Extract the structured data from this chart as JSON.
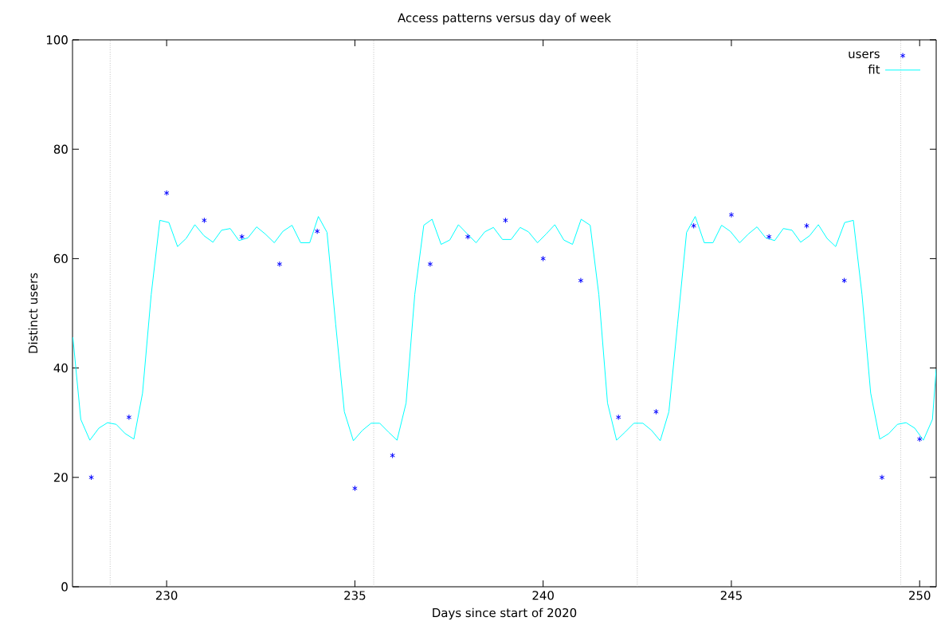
{
  "chart_data": {
    "type": "scatter",
    "title": "Access patterns versus day of week",
    "xlabel": "Days since start of 2020",
    "ylabel": "Distinct users",
    "xlim": [
      227.5,
      250.44
    ],
    "ylim": [
      0,
      100
    ],
    "xticks": [
      230,
      235,
      240,
      245,
      250
    ],
    "yticks": [
      0,
      20,
      40,
      60,
      80,
      100
    ],
    "legend": "top right",
    "ref_lines": [
      {
        "axis": "x",
        "value": 228.5,
        "color": "#a0a0a0",
        "line_style": "dotted"
      },
      {
        "axis": "x",
        "value": 235.5,
        "color": "#a0a0a0",
        "line_style": "dotted"
      },
      {
        "axis": "x",
        "value": 242.5,
        "color": "#a0a0a0",
        "line_style": "dotted"
      },
      {
        "axis": "x",
        "value": 249.5,
        "color": "#a0a0a0",
        "line_style": "dotted"
      }
    ],
    "series": [
      {
        "name": "users",
        "color": "#0000ff",
        "marker": "cross",
        "x": [
          228,
          229,
          230,
          231,
          232,
          233,
          234,
          235,
          236,
          237,
          238,
          239,
          240,
          241,
          242,
          243,
          244,
          245,
          246,
          247,
          248,
          249,
          250
        ],
        "values": [
          20,
          31,
          72,
          67,
          64,
          59,
          65,
          18,
          24,
          59,
          64,
          67,
          60,
          56,
          31,
          32,
          66,
          68,
          64,
          66,
          56,
          20,
          27
        ]
      },
      {
        "name": "fit",
        "type": "line",
        "color": "#00ffff",
        "marker": "none",
        "line_style": "solid",
        "x": [
          227.51,
          227.72,
          227.96,
          228.2,
          228.43,
          228.66,
          228.9,
          229.13,
          229.36,
          229.59,
          229.82,
          230.06,
          230.29,
          230.52,
          230.75,
          230.99,
          231.23,
          231.46,
          231.69,
          231.92,
          232.16,
          232.39,
          232.62,
          232.86,
          233.09,
          233.33,
          233.56,
          233.8,
          234.03,
          234.26,
          234.49,
          234.72,
          234.96,
          235.2,
          235.43,
          235.66,
          235.89,
          236.12,
          236.36,
          236.59,
          236.83,
          237.05,
          237.29,
          237.52,
          237.75,
          237.99,
          238.22,
          238.45,
          238.68,
          238.92,
          239.15,
          239.39,
          239.61,
          239.85,
          240.08,
          240.31,
          240.55,
          240.78,
          241.01,
          241.25,
          241.48,
          241.71,
          241.95,
          242.18,
          242.41,
          242.65,
          242.88,
          243.11,
          243.34,
          243.57,
          243.81,
          244.04,
          244.28,
          244.51,
          244.74,
          244.97,
          245.22,
          245.45,
          245.68,
          245.91,
          246.15,
          246.38,
          246.61,
          246.84,
          247.08,
          247.31,
          247.54,
          247.77,
          248.01,
          248.24,
          248.47,
          248.7,
          248.94,
          249.18,
          249.41,
          249.64,
          249.87,
          250.1,
          250.34,
          250.44
        ],
        "values": [
          45.6,
          30.6,
          26.8,
          29.0,
          30.0,
          29.7,
          28.0,
          27.0,
          35.4,
          53.4,
          67.0,
          66.6,
          62.2,
          63.7,
          66.2,
          64.2,
          63.0,
          65.2,
          65.5,
          63.3,
          63.8,
          65.8,
          64.5,
          62.9,
          65.0,
          66.1,
          62.9,
          62.9,
          67.7,
          64.8,
          48.0,
          32.0,
          26.7,
          28.6,
          29.9,
          29.9,
          28.3,
          26.8,
          33.6,
          53.4,
          66.1,
          67.2,
          62.6,
          63.4,
          66.2,
          64.5,
          62.9,
          64.9,
          65.7,
          63.5,
          63.5,
          65.7,
          64.9,
          62.9,
          64.5,
          66.2,
          63.4,
          62.6,
          67.2,
          66.1,
          53.4,
          33.6,
          26.8,
          28.3,
          29.9,
          29.9,
          28.6,
          26.7,
          32.0,
          48.0,
          64.8,
          67.7,
          62.9,
          62.9,
          66.1,
          65.0,
          62.9,
          64.5,
          65.8,
          63.8,
          63.3,
          65.5,
          65.2,
          63.0,
          64.2,
          66.2,
          63.7,
          62.2,
          66.6,
          67.0,
          53.4,
          35.4,
          27.0,
          28.0,
          29.7,
          30.0,
          29.0,
          26.8,
          30.6,
          39.8
        ]
      }
    ]
  }
}
